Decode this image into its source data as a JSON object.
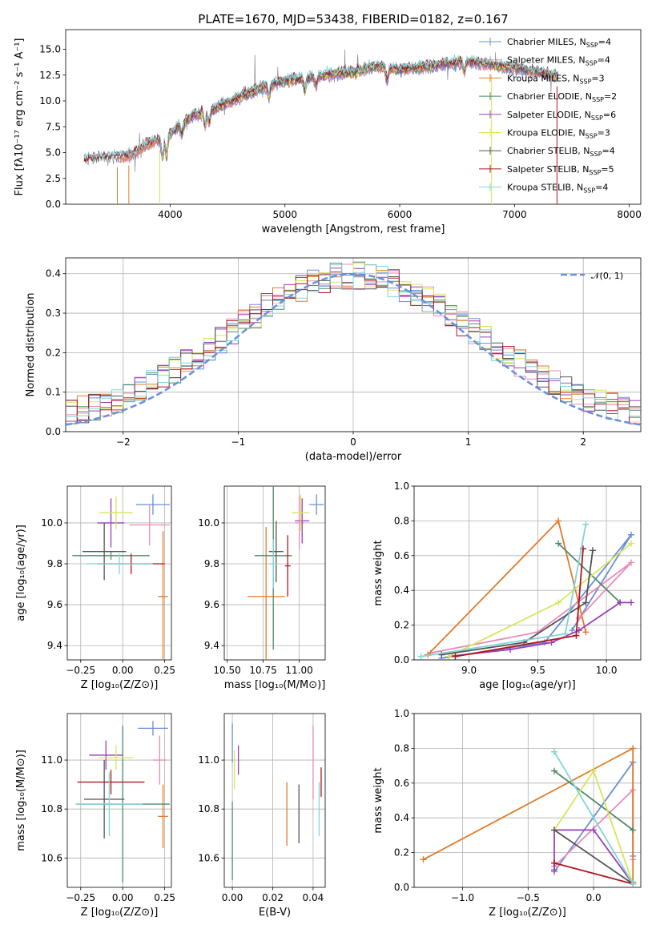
{
  "colors": {
    "Chabrier MILES": "#6b8ed6",
    "Salpeter MILES": "#e88bb7",
    "Kroupa MILES": "#e07b2a",
    "Chabrier ELODIE": "#4f8a6a",
    "Salpeter ELODIE": "#9b3fb5",
    "Kroupa ELODIE": "#d6e65c",
    "Chabrier STELIB": "#555555",
    "Salpeter STELIB": "#b0161e",
    "Kroupa STELIB": "#82d4d8"
  },
  "chart_data": [
    {
      "id": "spectrum",
      "type": "line",
      "title": "PLATE=1670, MJD=53438, FIBERID=0182, z=0.167",
      "xlabel": "wavelength [Angstrom, rest frame]",
      "ylabel": "Flux [fλ10⁻¹⁷ erg cm⁻² s⁻¹ A⁻¹]",
      "xlim": [
        3090,
        8100
      ],
      "ylim": [
        0,
        16.9
      ],
      "xticks": [
        4000,
        5000,
        6000,
        7000,
        8000
      ],
      "yticks": [
        0.0,
        2.5,
        5.0,
        7.5,
        10.0,
        12.5,
        15.0
      ],
      "legend_position": "upper-right",
      "legend": [
        {
          "label": "Chabrier MILES, N_SSP=4",
          "text": "Chabrier MILES, N",
          "sub": "SSP",
          "tail": "=4"
        },
        {
          "label": "Salpeter MILES, N_SSP=4",
          "text": "Salpeter MILES, N",
          "sub": "SSP",
          "tail": "=4"
        },
        {
          "label": "Kroupa MILES, N_SSP=3",
          "text": "Kroupa MILES, N",
          "sub": "SSP",
          "tail": "=3"
        },
        {
          "label": "Chabrier ELODIE, N_SSP=2",
          "text": "Chabrier ELODIE, N",
          "sub": "SSP",
          "tail": "=2"
        },
        {
          "label": "Salpeter ELODIE, N_SSP=6",
          "text": "Salpeter ELODIE, N",
          "sub": "SSP",
          "tail": "=6"
        },
        {
          "label": "Kroupa ELODIE, N_SSP=3",
          "text": "Kroupa ELODIE, N",
          "sub": "SSP",
          "tail": "=3"
        },
        {
          "label": "Chabrier STELIB, N_SSP=4",
          "text": "Chabrier STELIB, N",
          "sub": "SSP",
          "tail": "=4"
        },
        {
          "label": "Salpeter STELIB, N_SSP=5",
          "text": "Salpeter STELIB, N",
          "sub": "SSP",
          "tail": "=5"
        },
        {
          "label": "Kroupa STELIB, N_SSP=4",
          "text": "Kroupa STELIB, N",
          "sub": "SSP",
          "tail": "=4"
        }
      ],
      "continuum_points": [
        [
          3250,
          4.2
        ],
        [
          3400,
          4.5
        ],
        [
          3600,
          4.6
        ],
        [
          3700,
          5.0
        ],
        [
          3800,
          5.8
        ],
        [
          3900,
          6.2
        ],
        [
          4000,
          6.8
        ],
        [
          4100,
          7.8
        ],
        [
          4200,
          8.6
        ],
        [
          4400,
          9.3
        ],
        [
          4600,
          10.3
        ],
        [
          4800,
          11.3
        ],
        [
          5000,
          12.0
        ],
        [
          5200,
          12.2
        ],
        [
          5400,
          12.6
        ],
        [
          5600,
          12.8
        ],
        [
          5800,
          13.4
        ],
        [
          6000,
          13.0
        ],
        [
          6200,
          13.3
        ],
        [
          6400,
          13.6
        ],
        [
          6600,
          13.8
        ],
        [
          6800,
          13.5
        ],
        [
          7000,
          13.2
        ],
        [
          7200,
          12.8
        ],
        [
          7380,
          12.4
        ]
      ]
    },
    {
      "id": "residuals",
      "type": "histogram",
      "xlabel": "(data-model)/error",
      "ylabel": "Normed distribution",
      "xlim": [
        -2.5,
        2.5
      ],
      "ylim": [
        0,
        0.44
      ],
      "xticks": [
        -2,
        -1,
        0,
        1,
        2
      ],
      "yticks": [
        0.0,
        0.1,
        0.2,
        0.3,
        0.4
      ],
      "bin_width": 0.1,
      "reference_curve": {
        "label": "N(0,1)",
        "text": "𝒩(0, 1)",
        "mean": 0,
        "sigma": 1,
        "style": "dashed"
      },
      "legend_position": "upper-right"
    },
    {
      "id": "age_vs_Z",
      "type": "errorbar",
      "xlabel": "Z [log₁₀(Z/Z⊙)]",
      "ylabel": "age  [log₁₀(age/yr)]",
      "xlim": [
        -0.33,
        0.29
      ],
      "ylim": [
        9.33,
        10.18
      ],
      "xticks": [
        -0.25,
        0.0,
        0.25
      ],
      "xticklabels": [
        "−0.25",
        "0.00",
        "0.25"
      ],
      "yticks": [
        9.4,
        9.6,
        9.8,
        10.0
      ],
      "points": [
        {
          "series": "Chabrier MILES",
          "x": 0.18,
          "xerr": 0.1,
          "y": 10.09,
          "yerr": 0.05
        },
        {
          "series": "Salpeter MILES",
          "x": 0.16,
          "xerr": 0.12,
          "y": 9.99,
          "yerr": 0.1
        },
        {
          "series": "Kroupa MILES",
          "x": 0.24,
          "xerr": 0.03,
          "y": 9.64,
          "yerr": 0.32
        },
        {
          "series": "Chabrier ELODIE",
          "x": -0.07,
          "xerr": 0.23,
          "y": 9.84,
          "yerr": 0.02
        },
        {
          "series": "Salpeter ELODIE",
          "x": -0.07,
          "xerr": 0.08,
          "y": 10.0,
          "yerr": 0.12
        },
        {
          "series": "Kroupa ELODIE",
          "x": -0.04,
          "xerr": 0.1,
          "y": 10.05,
          "yerr": 0.08
        },
        {
          "series": "Chabrier STELIB",
          "x": -0.11,
          "xerr": 0.13,
          "y": 9.86,
          "yerr": 0.14
        },
        {
          "series": "Salpeter STELIB",
          "x": 0.05,
          "xerr": 0.2,
          "y": 9.8,
          "yerr": 0.05
        },
        {
          "series": "Kroupa STELIB",
          "x": -0.02,
          "xerr": 0.2,
          "y": 9.8,
          "yerr": 0.05
        }
      ]
    },
    {
      "id": "age_vs_mass",
      "type": "errorbar",
      "xlabel": "mass [log₁₀(M/M⊙)]",
      "ylabel": "",
      "xlim": [
        10.48,
        11.18
      ],
      "ylim": [
        9.33,
        10.18
      ],
      "xticks": [
        10.5,
        10.75,
        11.0
      ],
      "xticklabels": [
        "10.50",
        "10.75",
        "11.00"
      ],
      "yticks": [
        9.4,
        9.6,
        9.8,
        10.0
      ],
      "points": [
        {
          "series": "Chabrier MILES",
          "x": 11.12,
          "xerr": 0.05,
          "y": 10.09,
          "yerr": 0.05
        },
        {
          "series": "Salpeter MILES",
          "x": 11.0,
          "xerr": 0.03,
          "y": 10.0,
          "yerr": 0.13
        },
        {
          "series": "Kroupa MILES",
          "x": 10.77,
          "xerr": 0.13,
          "y": 9.64,
          "yerr": 0.34
        },
        {
          "series": "Chabrier ELODIE",
          "x": 10.82,
          "xerr": 0.13,
          "y": 9.84,
          "yerr": 0.46
        },
        {
          "series": "Salpeter ELODIE",
          "x": 11.02,
          "xerr": 0.05,
          "y": 10.01,
          "yerr": 0.11
        },
        {
          "series": "Kroupa ELODIE",
          "x": 11.01,
          "xerr": 0.06,
          "y": 10.05,
          "yerr": 0.09
        },
        {
          "series": "Chabrier STELIB",
          "x": 10.84,
          "xerr": 0.05,
          "y": 9.86,
          "yerr": 0.15
        },
        {
          "series": "Salpeter STELIB",
          "x": 10.92,
          "xerr": 0.02,
          "y": 9.79,
          "yerr": 0.15
        },
        {
          "series": "Kroupa STELIB",
          "x": 10.82,
          "xerr": 0.03,
          "y": 9.8,
          "yerr": 0.12
        }
      ]
    },
    {
      "id": "massweight_vs_age",
      "type": "line",
      "xlabel": "age  [log₁₀(age/yr)]",
      "ylabel": "mass weight",
      "xlim": [
        8.6,
        10.25
      ],
      "ylim": [
        0,
        1
      ],
      "xticks": [
        9.0,
        9.5,
        10.0
      ],
      "yticks": [
        0.0,
        0.2,
        0.4,
        0.6,
        0.8,
        1.0
      ],
      "series": [
        {
          "name": "Chabrier MILES",
          "points": [
            [
              8.8,
              0.01
            ],
            [
              9.55,
              0.1
            ],
            [
              10.18,
              0.72
            ],
            [
              9.75,
              0.17
            ]
          ]
        },
        {
          "name": "Salpeter MILES",
          "points": [
            [
              8.72,
              0.04
            ],
            [
              9.5,
              0.16
            ],
            [
              10.18,
              0.56
            ],
            [
              9.8,
              0.24
            ]
          ]
        },
        {
          "name": "Kroupa MILES",
          "points": [
            [
              8.7,
              0.03
            ],
            [
              9.65,
              0.8
            ],
            [
              9.85,
              0.16
            ]
          ]
        },
        {
          "name": "Chabrier ELODIE",
          "points": [
            [
              9.65,
              0.67
            ],
            [
              10.1,
              0.33
            ]
          ]
        },
        {
          "name": "Salpeter ELODIE",
          "points": [
            [
              8.85,
              0.02
            ],
            [
              9.3,
              0.06
            ],
            [
              9.6,
              0.1
            ],
            [
              9.8,
              0.17
            ],
            [
              10.1,
              0.33
            ],
            [
              10.18,
              0.33
            ]
          ]
        },
        {
          "name": "Kroupa ELODIE",
          "points": [
            [
              8.85,
              0.02
            ],
            [
              9.65,
              0.33
            ],
            [
              10.18,
              0.67
            ]
          ]
        },
        {
          "name": "Chabrier STELIB",
          "points": [
            [
              8.8,
              0.03
            ],
            [
              9.4,
              0.1
            ],
            [
              9.85,
              0.33
            ],
            [
              9.9,
              0.63
            ]
          ]
        },
        {
          "name": "Salpeter STELIB",
          "points": [
            [
              8.9,
              0.02
            ],
            [
              9.78,
              0.14
            ],
            [
              9.83,
              0.64
            ]
          ]
        },
        {
          "name": "Kroupa STELIB",
          "points": [
            [
              8.65,
              0.02
            ],
            [
              9.7,
              0.15
            ],
            [
              9.85,
              0.78
            ]
          ]
        }
      ]
    },
    {
      "id": "mass_vs_Z",
      "type": "errorbar",
      "xlabel": "Z [log₁₀(Z/Z⊙)]",
      "ylabel": "mass [log₁₀(M/M⊙)]",
      "xlim": [
        -0.33,
        0.29
      ],
      "ylim": [
        10.48,
        11.19
      ],
      "xticks": [
        -0.25,
        0.0,
        0.25
      ],
      "xticklabels": [
        "−0.25",
        "0.00",
        "0.25"
      ],
      "yticks": [
        10.6,
        10.8,
        11.0
      ],
      "points": [
        {
          "series": "Chabrier MILES",
          "x": 0.18,
          "xerr": 0.09,
          "y": 11.13,
          "yerr": 0.03
        },
        {
          "series": "Salpeter MILES",
          "x": 0.22,
          "xerr": 0.04,
          "y": 11.0,
          "yerr": 0.1
        },
        {
          "series": "Kroupa MILES",
          "x": 0.24,
          "xerr": 0.03,
          "y": 10.77,
          "yerr": 0.13
        },
        {
          "series": "Chabrier ELODIE",
          "x": 0.0,
          "xerr": 0.28,
          "y": 10.82,
          "yerr": 0.32
        },
        {
          "series": "Salpeter ELODIE",
          "x": -0.1,
          "xerr": 0.1,
          "y": 11.02,
          "yerr": 0.06
        },
        {
          "series": "Kroupa ELODIE",
          "x": -0.04,
          "xerr": 0.1,
          "y": 11.01,
          "yerr": 0.05
        },
        {
          "series": "Chabrier STELIB",
          "x": -0.11,
          "xerr": 0.12,
          "y": 10.84,
          "yerr": 0.16
        },
        {
          "series": "Salpeter STELIB",
          "x": -0.07,
          "xerr": 0.2,
          "y": 10.91,
          "yerr": 0.05
        },
        {
          "series": "Kroupa STELIB",
          "x": -0.08,
          "xerr": 0.2,
          "y": 10.82,
          "yerr": 0.13
        }
      ]
    },
    {
      "id": "mass_vs_ebv",
      "type": "errorbar",
      "xlabel": "E(B-V)",
      "ylabel": "",
      "xlim": [
        -0.004,
        0.046
      ],
      "ylim": [
        10.48,
        11.19
      ],
      "xticks": [
        0.0,
        0.02,
        0.04
      ],
      "xticklabels": [
        "0.00",
        "0.02",
        "0.04"
      ],
      "yticks": [
        10.6,
        10.8,
        11.0
      ],
      "points": [
        {
          "series": "Chabrier MILES",
          "x": 0.0,
          "xerr": 0,
          "y": 11.07,
          "yerr": 0.08
        },
        {
          "series": "Salpeter MILES",
          "x": 0.04,
          "xerr": 0,
          "y": 10.99,
          "yerr": 0.15
        },
        {
          "series": "Kroupa MILES",
          "x": 0.027,
          "xerr": 0,
          "y": 10.78,
          "yerr": 0.13
        },
        {
          "series": "Chabrier ELODIE",
          "x": 0.0,
          "xerr": 0,
          "y": 10.67,
          "yerr": 0.16
        },
        {
          "series": "Salpeter ELODIE",
          "x": 0.003,
          "xerr": 0,
          "y": 11.0,
          "yerr": 0.06
        },
        {
          "series": "Kroupa ELODIE",
          "x": 0.001,
          "xerr": 0,
          "y": 10.96,
          "yerr": 0.08
        },
        {
          "series": "Chabrier STELIB",
          "x": 0.033,
          "xerr": 0,
          "y": 10.78,
          "yerr": 0.12
        },
        {
          "series": "Salpeter STELIB",
          "x": 0.044,
          "xerr": 0,
          "y": 10.91,
          "yerr": 0.06
        },
        {
          "series": "Kroupa STELIB",
          "x": 0.043,
          "xerr": 0,
          "y": 10.8,
          "yerr": 0.11
        }
      ]
    },
    {
      "id": "massweight_vs_Z",
      "type": "line",
      "xlabel": "Z [log₁₀(Z/Z⊙)]",
      "ylabel": "mass weight",
      "xlim": [
        -1.37,
        0.36
      ],
      "ylim": [
        0,
        1
      ],
      "xticks": [
        -1.0,
        -0.5,
        0.0
      ],
      "xticklabels": [
        "−1.0",
        "−0.5",
        "0.0"
      ],
      "yticks": [
        0.0,
        0.2,
        0.4,
        0.6,
        0.8,
        1.0
      ],
      "series": [
        {
          "name": "Chabrier MILES",
          "points": [
            [
              -0.3,
              0.09
            ],
            [
              0.3,
              0.72
            ],
            [
              0.3,
              0.18
            ]
          ]
        },
        {
          "name": "Salpeter MILES",
          "points": [
            [
              -0.3,
              0.12
            ],
            [
              0.3,
              0.56
            ],
            [
              0.3,
              0.16
            ]
          ]
        },
        {
          "name": "Kroupa MILES",
          "points": [
            [
              -1.3,
              0.16
            ],
            [
              0.3,
              0.8
            ],
            [
              0.3,
              0.03
            ]
          ]
        },
        {
          "name": "Chabrier ELODIE",
          "points": [
            [
              -0.3,
              0.67
            ],
            [
              0.3,
              0.33
            ]
          ]
        },
        {
          "name": "Salpeter ELODIE",
          "points": [
            [
              -0.3,
              0.1
            ],
            [
              -0.3,
              0.33
            ],
            [
              0.0,
              0.33
            ],
            [
              0.3,
              0.02
            ]
          ]
        },
        {
          "name": "Kroupa ELODIE",
          "points": [
            [
              -0.3,
              0.33
            ],
            [
              0.0,
              0.67
            ],
            [
              0.3,
              0.02
            ]
          ]
        },
        {
          "name": "Chabrier STELIB",
          "points": [
            [
              -0.3,
              0.33
            ],
            [
              0.3,
              0.02
            ]
          ]
        },
        {
          "name": "Salpeter STELIB",
          "points": [
            [
              -0.3,
              0.14
            ],
            [
              0.3,
              0.02
            ]
          ]
        },
        {
          "name": "Kroupa STELIB",
          "points": [
            [
              -0.3,
              0.78
            ],
            [
              0.3,
              0.02
            ]
          ]
        }
      ]
    }
  ]
}
